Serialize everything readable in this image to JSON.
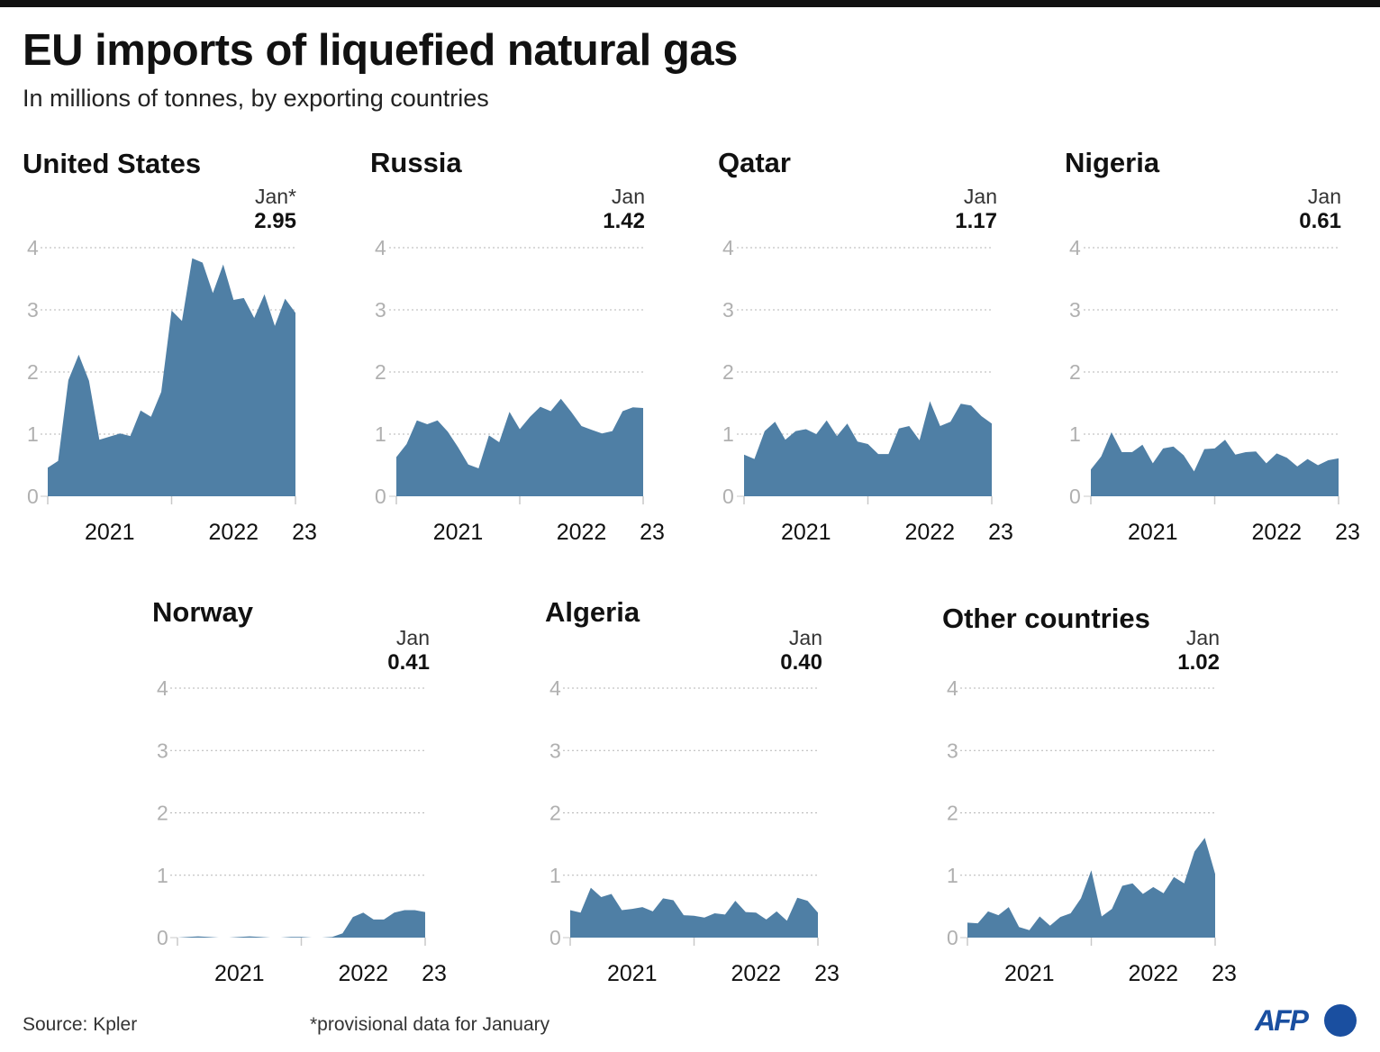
{
  "header": {
    "title": "EU imports of liquefied natural gas",
    "subtitle": "In millions of tonnes, by exporting countries"
  },
  "footer": {
    "source": "Source: Kpler",
    "note": "*provisional data for January",
    "logo_text": "AFP"
  },
  "colors": {
    "area_fill": "#4f7fa5",
    "gridline": "#b5b5b5",
    "axis_tick_label": "#b0b0b0",
    "axis_line": "#c8c8c8",
    "logo": "#1a4fa0",
    "topbar": "#111111"
  },
  "chart_data": [
    {
      "type": "area",
      "title": "United States",
      "last_label": {
        "month": "Jan*",
        "value": "2.95"
      },
      "x_start": "Jan 2021",
      "x_end": "Jan 2023",
      "frequency": "monthly",
      "x_tick_labels": [
        "2021",
        "2022",
        "23"
      ],
      "y_ticks": [
        0,
        1,
        2,
        3,
        4
      ],
      "ylim": [
        0,
        4
      ],
      "grid": true,
      "values": [
        0.46,
        0.57,
        1.87,
        2.28,
        1.86,
        0.91,
        0.96,
        1.01,
        0.97,
        1.38,
        1.28,
        1.68,
        2.99,
        2.82,
        3.83,
        3.76,
        3.27,
        3.73,
        3.16,
        3.19,
        2.87,
        3.25,
        2.74,
        3.18,
        2.95
      ]
    },
    {
      "type": "area",
      "title": "Russia",
      "last_label": {
        "month": "Jan",
        "value": "1.42"
      },
      "x_start": "Jan 2021",
      "x_end": "Jan 2023",
      "frequency": "monthly",
      "x_tick_labels": [
        "2021",
        "2022",
        "23"
      ],
      "y_ticks": [
        0,
        1,
        2,
        3,
        4
      ],
      "ylim": [
        0,
        4
      ],
      "grid": true,
      "values": [
        0.63,
        0.84,
        1.22,
        1.16,
        1.22,
        1.04,
        0.79,
        0.51,
        0.45,
        0.98,
        0.87,
        1.36,
        1.08,
        1.28,
        1.44,
        1.37,
        1.57,
        1.36,
        1.13,
        1.07,
        1.01,
        1.05,
        1.37,
        1.43,
        1.42
      ]
    },
    {
      "type": "area",
      "title": "Qatar",
      "last_label": {
        "month": "Jan",
        "value": "1.17"
      },
      "x_start": "Jan 2021",
      "x_end": "Jan 2023",
      "frequency": "monthly",
      "x_tick_labels": [
        "2021",
        "2022",
        "23"
      ],
      "y_ticks": [
        0,
        1,
        2,
        3,
        4
      ],
      "ylim": [
        0,
        4
      ],
      "grid": true,
      "values": [
        0.67,
        0.6,
        1.05,
        1.2,
        0.91,
        1.05,
        1.08,
        1.0,
        1.22,
        0.97,
        1.17,
        0.88,
        0.84,
        0.68,
        0.68,
        1.09,
        1.13,
        0.9,
        1.53,
        1.13,
        1.2,
        1.49,
        1.46,
        1.29,
        1.17
      ]
    },
    {
      "type": "area",
      "title": "Nigeria",
      "last_label": {
        "month": "Jan",
        "value": "0.61"
      },
      "x_start": "Jan 2021",
      "x_end": "Jan 2023",
      "frequency": "monthly",
      "x_tick_labels": [
        "2021",
        "2022",
        "23"
      ],
      "y_ticks": [
        0,
        1,
        2,
        3,
        4
      ],
      "ylim": [
        0,
        4
      ],
      "grid": true,
      "values": [
        0.43,
        0.64,
        1.03,
        0.71,
        0.71,
        0.83,
        0.53,
        0.77,
        0.8,
        0.66,
        0.4,
        0.76,
        0.77,
        0.91,
        0.67,
        0.71,
        0.72,
        0.53,
        0.69,
        0.62,
        0.48,
        0.6,
        0.5,
        0.58,
        0.61
      ]
    },
    {
      "type": "area",
      "title": "Norway",
      "last_label": {
        "month": "Jan",
        "value": "0.41"
      },
      "x_start": "Jan 2021",
      "x_end": "Jan 2023",
      "frequency": "monthly",
      "x_tick_labels": [
        "2021",
        "2022",
        "23"
      ],
      "y_ticks": [
        0,
        1,
        2,
        3,
        4
      ],
      "ylim": [
        0,
        4
      ],
      "grid": true,
      "values": [
        0.0,
        0.01,
        0.02,
        0.01,
        0.0,
        0.0,
        0.01,
        0.02,
        0.01,
        0.0,
        0.0,
        0.01,
        0.01,
        0.0,
        0.0,
        0.01,
        0.07,
        0.33,
        0.4,
        0.29,
        0.29,
        0.4,
        0.44,
        0.44,
        0.41
      ]
    },
    {
      "type": "area",
      "title": "Algeria",
      "last_label": {
        "month": "Jan",
        "value": "0.40"
      },
      "x_start": "Jan 2021",
      "x_end": "Jan 2023",
      "frequency": "monthly",
      "x_tick_labels": [
        "2021",
        "2022",
        "23"
      ],
      "y_ticks": [
        0,
        1,
        2,
        3,
        4
      ],
      "ylim": [
        0,
        4
      ],
      "grid": true,
      "values": [
        0.44,
        0.4,
        0.8,
        0.65,
        0.7,
        0.44,
        0.46,
        0.49,
        0.42,
        0.63,
        0.6,
        0.36,
        0.35,
        0.32,
        0.39,
        0.37,
        0.59,
        0.41,
        0.4,
        0.29,
        0.42,
        0.27,
        0.64,
        0.59,
        0.4
      ]
    },
    {
      "type": "area",
      "title": "Other countries",
      "last_label": {
        "month": "Jan",
        "value": "1.02"
      },
      "x_start": "Jan 2021",
      "x_end": "Jan 2023",
      "frequency": "monthly",
      "x_tick_labels": [
        "2021",
        "2022",
        "23"
      ],
      "y_ticks": [
        0,
        1,
        2,
        3,
        4
      ],
      "ylim": [
        0,
        4
      ],
      "grid": true,
      "values": [
        0.24,
        0.23,
        0.42,
        0.36,
        0.49,
        0.17,
        0.12,
        0.34,
        0.19,
        0.33,
        0.39,
        0.63,
        1.08,
        0.34,
        0.46,
        0.83,
        0.87,
        0.7,
        0.81,
        0.71,
        0.97,
        0.87,
        1.38,
        1.6,
        1.02
      ]
    }
  ]
}
